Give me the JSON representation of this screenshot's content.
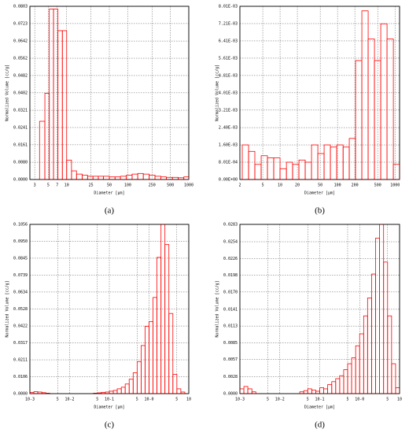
{
  "chart_data": [
    {
      "type": "histogram",
      "caption": "(a)",
      "xlabel": "Diameter [µm]",
      "ylabel": "Normalized Volume [cc/g]",
      "color": "#ff0000",
      "xscale": "log",
      "grid": true,
      "xlim": [
        2.5,
        1000
      ],
      "xticks": [
        3,
        5,
        7,
        10,
        25,
        50,
        100,
        250,
        500,
        1000
      ],
      "ylim": [
        0,
        0.0803
      ],
      "yticks": [
        {
          "value": 0,
          "label": "0.0000"
        },
        {
          "value": 0.008,
          "label": "0.0080"
        },
        0.0161,
        0.0241,
        0.0321,
        0.0402,
        0.0482,
        0.0562,
        0.0642,
        0.0723,
        0.0803
      ],
      "bins": [
        3.6,
        4.4,
        5.2,
        6.1,
        7.2,
        8.5,
        10,
        12,
        14.5,
        18,
        22,
        27,
        33,
        40,
        50,
        62,
        76,
        95,
        118,
        146,
        180,
        225,
        280,
        350,
        430,
        540,
        670,
        830,
        1000
      ],
      "values": [
        0.027,
        0.04,
        0.079,
        0.079,
        0.069,
        0.069,
        0.009,
        0.004,
        0.0025,
        0.002,
        0.0015,
        0.0015,
        0.0015,
        0.0015,
        0.0012,
        0.0012,
        0.0015,
        0.002,
        0.0025,
        0.0028,
        0.0025,
        0.002,
        0.0015,
        0.0012,
        0.001,
        0.001,
        0.0008,
        0.0012
      ]
    },
    {
      "type": "histogram",
      "caption": "(b)",
      "xlabel": "Diameter [µm]",
      "ylabel": "Normalized Volume [cc/g]",
      "color": "#ff0000",
      "xscale": "log",
      "grid": true,
      "xlim": [
        2,
        1200
      ],
      "xticks": [
        2,
        5,
        10,
        20,
        50,
        100,
        200,
        500,
        1000
      ],
      "ylim": [
        0,
        0.00801
      ],
      "yticks": [
        {
          "value": 0,
          "label": "0.00E+00"
        },
        {
          "value": 0.000801,
          "label": "8.01E-04"
        },
        {
          "value": 0.0016,
          "label": "1.60E-03"
        },
        {
          "value": 0.0024,
          "label": "2.40E-03"
        },
        {
          "value": 0.00321,
          "label": "3.21E-03"
        },
        {
          "value": 0.00401,
          "label": "4.01E-03"
        },
        {
          "value": 0.00481,
          "label": "4.81E-03"
        },
        {
          "value": 0.00561,
          "label": "5.61E-03"
        },
        {
          "value": 0.00641,
          "label": "6.41E-03"
        },
        {
          "value": 0.00721,
          "label": "7.21E-03"
        },
        {
          "value": 0.00801,
          "label": "8.01E-03"
        }
      ],
      "bins": [
        2.2,
        2.83,
        3.64,
        4.69,
        6.03,
        7.76,
        9.99,
        12.9,
        16.5,
        21.3,
        27.4,
        35.3,
        45.4,
        58.4,
        75.2,
        96.8,
        125,
        160,
        206,
        265,
        341,
        439,
        565,
        727,
        936,
        1200
      ],
      "values": [
        0.0016,
        0.0013,
        0.0007,
        0.0011,
        0.001,
        0.001,
        0.0005,
        0.0008,
        0.0007,
        0.0009,
        0.0008,
        0.0016,
        0.0012,
        0.0016,
        0.0015,
        0.0016,
        0.0015,
        0.0019,
        0.0055,
        0.0078,
        0.0065,
        0.0055,
        0.0072,
        0.0065,
        0.0007
      ]
    },
    {
      "type": "histogram",
      "caption": "(c)",
      "xlabel": "Diameter [µm]",
      "ylabel": "Normalized Volume [cc/g]",
      "color": "#ff0000",
      "xscale": "log",
      "grid": true,
      "xlim": [
        0.001,
        10
      ],
      "xticks": [
        {
          "value": 0.001,
          "label": "10-3"
        },
        {
          "value": 0.005,
          "label": "5"
        },
        {
          "value": 0.01,
          "label": "10-2"
        },
        {
          "value": 0.05,
          "label": "5"
        },
        {
          "value": 0.1,
          "label": "10-1"
        },
        {
          "value": 0.5,
          "label": "5"
        },
        {
          "value": 1,
          "label": "10-0"
        },
        {
          "value": 5,
          "label": "5"
        },
        10
      ],
      "ylim": [
        0,
        0.1056
      ],
      "yticks": [
        {
          "value": 0,
          "label": "0.0000"
        },
        0.0106,
        0.0211,
        0.0317,
        0.0422,
        0.0528,
        0.0634,
        0.0739,
        0.0845,
        {
          "value": 0.095,
          "label": "0.0950"
        },
        0.1056
      ],
      "bins": [
        0.001,
        0.00126,
        0.00158,
        0.002,
        0.00251,
        0.00316,
        0.00398,
        0.00501,
        0.00631,
        0.00794,
        0.01,
        0.0126,
        0.0158,
        0.02,
        0.0251,
        0.0316,
        0.0398,
        0.0501,
        0.0631,
        0.0794,
        0.1,
        0.126,
        0.158,
        0.2,
        0.251,
        0.316,
        0.398,
        0.501,
        0.631,
        0.794,
        1,
        1.26,
        1.58,
        2,
        2.51,
        3.16,
        3.98,
        5.01,
        6.31,
        7.94,
        10
      ],
      "values": [
        0.0008,
        0.0012,
        0.001,
        0.0006,
        0.0003,
        0,
        0,
        0,
        0,
        0,
        0,
        0,
        0,
        0,
        0,
        0,
        0.0003,
        0.0005,
        0.0008,
        0.001,
        0.0015,
        0.002,
        0.003,
        0.004,
        0.006,
        0.009,
        0.013,
        0.02,
        0.03,
        0.042,
        0.045,
        0.06,
        0.085,
        0.1056,
        0.093,
        0.05,
        0.012,
        0.003,
        0.001,
        0
      ]
    },
    {
      "type": "histogram",
      "caption": "(d)",
      "xlabel": "Diameter [µm]",
      "ylabel": "Normalized Volume [cc/g]",
      "color": "#ff0000",
      "xscale": "log",
      "grid": true,
      "xlim": [
        0.001,
        10
      ],
      "xticks": [
        {
          "value": 0.001,
          "label": "10-3"
        },
        {
          "value": 0.005,
          "label": "5"
        },
        {
          "value": 0.01,
          "label": "10-2"
        },
        {
          "value": 0.05,
          "label": "5"
        },
        {
          "value": 0.1,
          "label": "10-1"
        },
        {
          "value": 0.5,
          "label": "5"
        },
        {
          "value": 1,
          "label": "10-0"
        },
        {
          "value": 5,
          "label": "5"
        },
        10
      ],
      "ylim": [
        0,
        0.0283
      ],
      "yticks": [
        {
          "value": 0,
          "label": "0.0000"
        },
        0.0028,
        0.0057,
        0.0085,
        0.0113,
        0.0141,
        {
          "value": 0.017,
          "label": "0.0170"
        },
        0.0198,
        0.0226,
        0.0254,
        0.0283
      ],
      "bins": [
        0.001,
        0.00126,
        0.00158,
        0.002,
        0.00251,
        0.00316,
        0.00398,
        0.00501,
        0.00631,
        0.00794,
        0.01,
        0.0126,
        0.0158,
        0.02,
        0.0251,
        0.0316,
        0.0398,
        0.0501,
        0.0631,
        0.0794,
        0.1,
        0.126,
        0.158,
        0.2,
        0.251,
        0.316,
        0.398,
        0.501,
        0.631,
        0.794,
        1,
        1.26,
        1.58,
        2,
        2.51,
        3.16,
        3.98,
        5.01,
        6.31,
        7.94,
        10
      ],
      "values": [
        0.0008,
        0.0012,
        0.0008,
        0.0003,
        0,
        0,
        0,
        0,
        0,
        0,
        0,
        0,
        0,
        0,
        0,
        0.0003,
        0.0005,
        0.0008,
        0.0006,
        0.0004,
        0.001,
        0.0008,
        0.0015,
        0.002,
        0.0025,
        0.003,
        0.004,
        0.005,
        0.006,
        0.008,
        0.01,
        0.013,
        0.016,
        0.02,
        0.026,
        0.0283,
        0.022,
        0.013,
        0.005,
        0.001
      ]
    }
  ]
}
